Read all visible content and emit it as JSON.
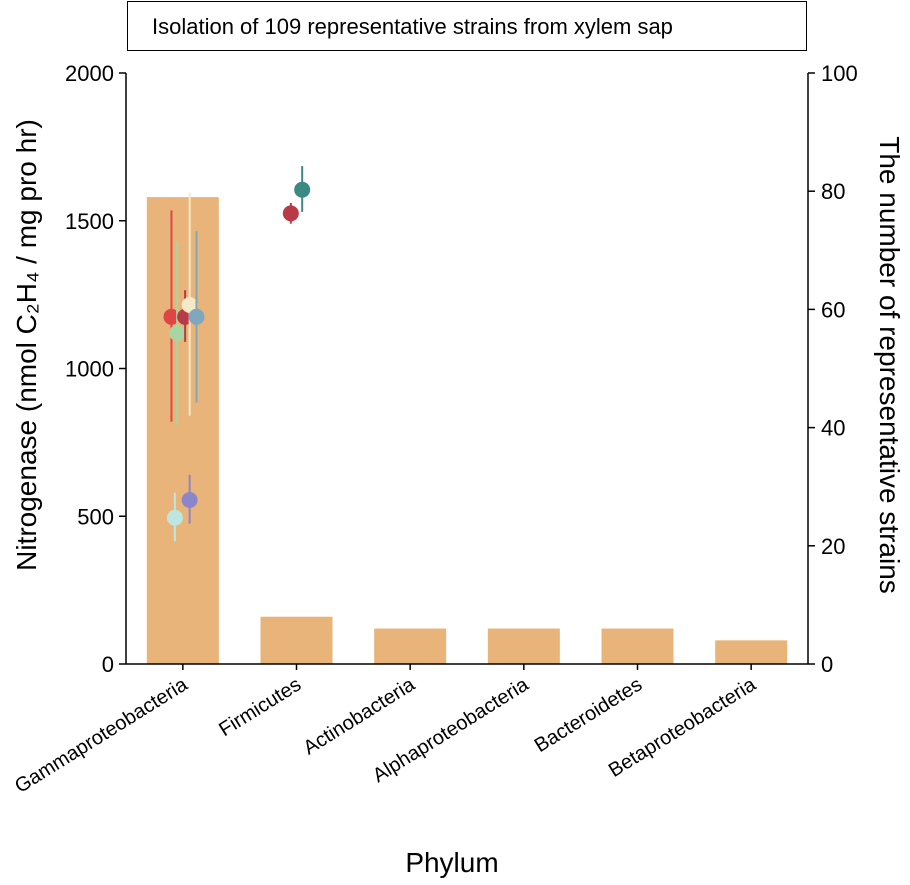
{
  "chart_data": {
    "type": "bar",
    "title": "Isolation of 109 representative strains from xylem sap",
    "xlabel": "Phylum",
    "ylabel_left": "Nitrogenase (nmol C₂H₄ / mg pro hr)",
    "ylabel_right": "The number of representative strains",
    "categories": [
      "Gammaproteobacteria",
      "Firmicutes",
      "Actinobacteria",
      "Alphaproteobacteria",
      "Bacteroidetes",
      "Betaproteobacteria"
    ],
    "left_axis": {
      "ylim": [
        0,
        2000
      ],
      "ticks": [
        0,
        500,
        1000,
        1500,
        2000
      ]
    },
    "right_axis": {
      "ylim": [
        0,
        100
      ],
      "ticks": [
        0,
        20,
        40,
        60,
        80,
        100
      ]
    },
    "bar_color": "#E9B47A",
    "bar_values": [
      79,
      8,
      6,
      6,
      6,
      4
    ],
    "points": [
      {
        "category": 0,
        "offset": -0.1,
        "y": 1175,
        "err_low": 820,
        "err_high": 1535,
        "color": "#E04545"
      },
      {
        "category": 0,
        "offset": -0.05,
        "y": 1120,
        "err_low": 810,
        "err_high": 1430,
        "color": "#A8D5A2"
      },
      {
        "category": 0,
        "offset": 0.02,
        "y": 1175,
        "err_low": 1090,
        "err_high": 1265,
        "color": "#B83A47"
      },
      {
        "category": 0,
        "offset": 0.06,
        "y": 1215,
        "err_low": 840,
        "err_high": 1595,
        "color": "#F5EAC8"
      },
      {
        "category": 0,
        "offset": 0.12,
        "y": 1175,
        "err_low": 885,
        "err_high": 1465,
        "color": "#7FA7BE"
      },
      {
        "category": 0,
        "offset": -0.07,
        "y": 495,
        "err_low": 415,
        "err_high": 580,
        "color": "#BDE6E0"
      },
      {
        "category": 0,
        "offset": 0.06,
        "y": 555,
        "err_low": 475,
        "err_high": 640,
        "color": "#8A86C9"
      },
      {
        "category": 1,
        "offset": -0.05,
        "y": 1525,
        "err_low": 1490,
        "err_high": 1560,
        "color": "#B83A47"
      },
      {
        "category": 1,
        "offset": 0.05,
        "y": 1605,
        "err_low": 1530,
        "err_high": 1685,
        "color": "#3A8A82"
      }
    ]
  }
}
